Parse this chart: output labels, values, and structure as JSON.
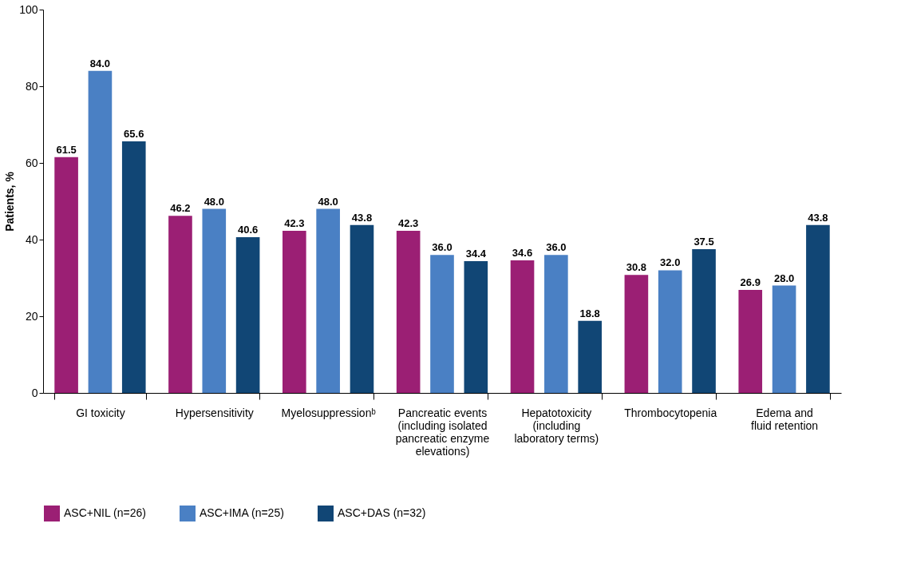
{
  "chart_data": {
    "type": "bar",
    "ylabel": "Patients, %",
    "categories": [
      "GI toxicity",
      "Hypersensitivity",
      "Myelosuppressionᵇ",
      "Pancreatic events\n(including isolated\npancreatic enzyme\nelevations)",
      "Hepatotoxicity\n(including\nlaboratory terms)",
      "Thrombocytopenia",
      "Edema and\nfluid retention"
    ],
    "series": [
      {
        "name": "ASC+NIL (n=26)",
        "color": "#9b1f74",
        "values": [
          61.5,
          46.2,
          42.3,
          42.3,
          34.6,
          30.8,
          26.9
        ],
        "value_labels": [
          "61.5",
          "46.2",
          "42.3",
          "42.3",
          "34.6",
          "30.8",
          "26.9"
        ]
      },
      {
        "name": "ASC+IMA (n=25)",
        "color": "#4a80c4",
        "values": [
          84,
          48,
          48,
          36,
          36,
          32,
          28
        ],
        "value_labels": [
          "84.0",
          "48.0",
          "48.0",
          "36.0",
          "36.0",
          "32.0",
          "28.0"
        ]
      },
      {
        "name": "ASC+DAS (n=32)",
        "color": "#114675",
        "values": [
          65.6,
          40.6,
          43.8,
          34.4,
          18.8,
          37.5,
          43.8
        ],
        "value_labels": [
          "65.6",
          "40.6",
          "43.8",
          "34.4",
          "18.8",
          "37.5",
          "43.8"
        ]
      }
    ],
    "ylim": [
      0,
      100
    ],
    "yticks": [
      0,
      20,
      40,
      60,
      80,
      100
    ],
    "grid": false,
    "legend": "bottom left"
  }
}
